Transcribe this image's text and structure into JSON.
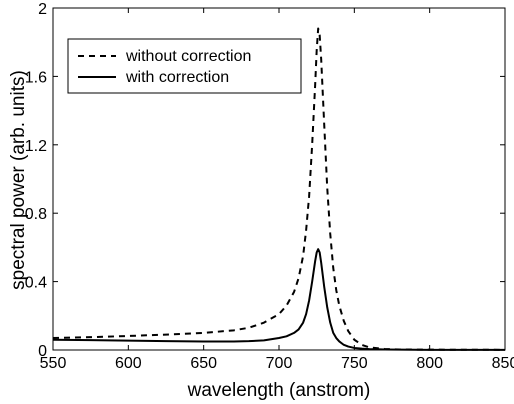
{
  "chart_data": {
    "type": "line",
    "title": "",
    "xlabel": "wavelength (anstrom)",
    "ylabel": "spectral power (arb. units)",
    "xlim": [
      550,
      850
    ],
    "ylim": [
      0,
      2
    ],
    "xticks": [
      550,
      600,
      650,
      700,
      750,
      800,
      850
    ],
    "xtick_labels": [
      "550",
      "600",
      "650",
      "700",
      "750",
      "800",
      "850"
    ],
    "yticks": [
      0,
      0.4,
      0.8,
      1.2,
      1.6,
      2
    ],
    "ytick_labels": [
      "0",
      "0.4",
      "0.8",
      "1.2",
      "1.6",
      "2"
    ],
    "grid": false,
    "legend_position": "top-left",
    "series": [
      {
        "name": "without correction",
        "style": "dashed",
        "color": "#000000",
        "x": [
          550,
          575,
          600,
          625,
          650,
          670,
          680,
          690,
          700,
          705,
          710,
          713,
          716,
          718,
          720,
          722,
          724,
          725,
          726,
          727,
          728,
          730,
          732,
          734,
          736,
          738,
          740,
          743,
          746,
          750,
          755,
          760,
          770,
          780,
          800,
          850
        ],
        "y": [
          0.07,
          0.075,
          0.082,
          0.09,
          0.1,
          0.115,
          0.13,
          0.16,
          0.21,
          0.26,
          0.34,
          0.42,
          0.55,
          0.7,
          0.9,
          1.2,
          1.55,
          1.75,
          1.88,
          1.84,
          1.7,
          1.32,
          0.95,
          0.68,
          0.48,
          0.35,
          0.26,
          0.17,
          0.11,
          0.06,
          0.03,
          0.015,
          0.006,
          0.003,
          0.002,
          0.001
        ]
      },
      {
        "name": "with correction",
        "style": "solid",
        "color": "#000000",
        "x": [
          550,
          575,
          600,
          625,
          650,
          670,
          680,
          690,
          700,
          705,
          710,
          713,
          716,
          718,
          720,
          722,
          724,
          725,
          726,
          727,
          728,
          730,
          732,
          734,
          736,
          738,
          740,
          743,
          746,
          750,
          755,
          760,
          770,
          780,
          800,
          850
        ],
        "y": [
          0.06,
          0.058,
          0.055,
          0.052,
          0.05,
          0.05,
          0.052,
          0.056,
          0.07,
          0.08,
          0.1,
          0.12,
          0.16,
          0.21,
          0.29,
          0.4,
          0.52,
          0.57,
          0.59,
          0.57,
          0.51,
          0.37,
          0.25,
          0.16,
          0.1,
          0.07,
          0.05,
          0.03,
          0.02,
          0.012,
          0.008,
          0.005,
          0.003,
          0.002,
          0.001,
          0.001
        ]
      }
    ]
  }
}
